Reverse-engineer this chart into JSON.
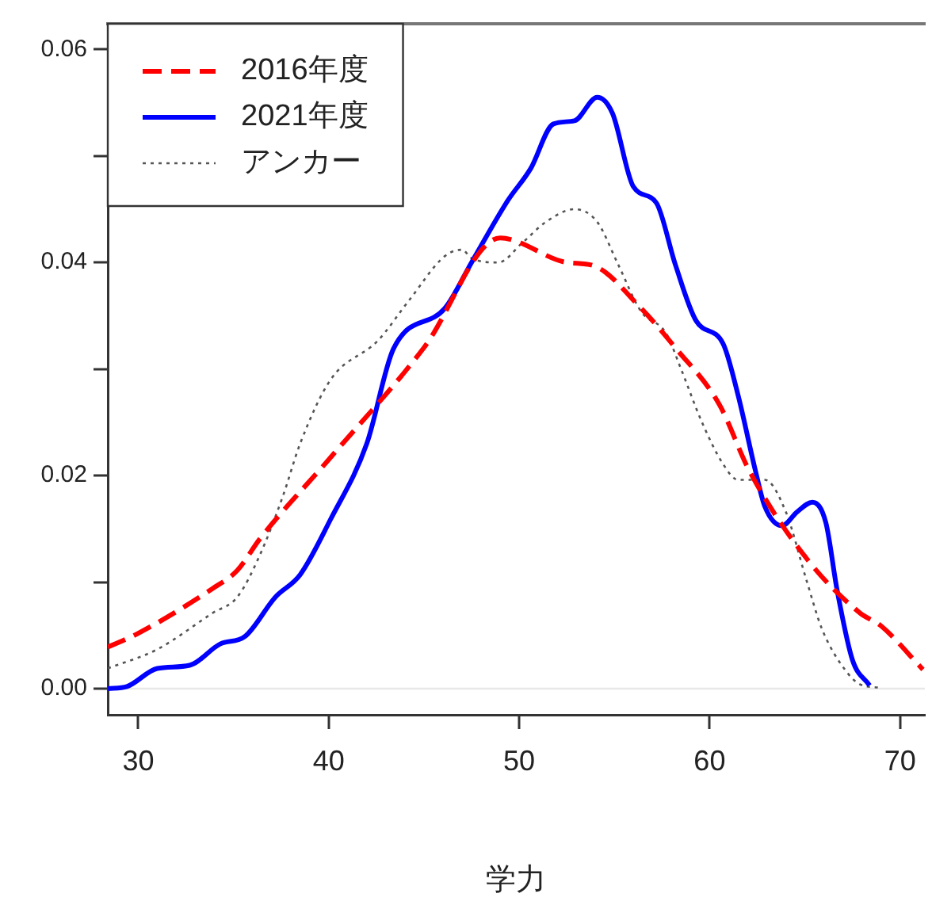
{
  "chart_data": {
    "type": "line",
    "xlabel": "学力",
    "xlim": [
      28.4,
      71.3
    ],
    "ylim": [
      -0.00245,
      0.0624
    ],
    "xticks": [
      30,
      40,
      50,
      60,
      70
    ],
    "yticks": [
      {
        "value": 0,
        "label": "0.00"
      },
      {
        "value": 0.01,
        "label": null
      },
      {
        "value": 0.02,
        "label": "0.02"
      },
      {
        "value": 0.03,
        "label": null
      },
      {
        "value": 0.04,
        "label": "0.04"
      },
      {
        "value": 0.05,
        "label": null
      },
      {
        "value": 0.06,
        "label": "0.06"
      }
    ],
    "grid": false,
    "legend": "top left",
    "marker": "none",
    "ref_lines": [
      {
        "axis": "y",
        "value": 0,
        "color": "#e8e8e8"
      }
    ],
    "series": [
      {
        "name": "2016年度",
        "color": "#ff0000",
        "line_style": "dashed",
        "x": [
          28.4,
          30,
          33.9,
          35.2,
          36.4,
          40,
          45,
          49,
          52.5,
          53.9,
          56.4,
          58.2,
          60.5,
          62.1,
          65.1,
          67.9,
          69,
          71.2
        ],
        "values": [
          0.0039,
          0.0052,
          0.0094,
          0.0111,
          0.0141,
          0.0215,
          0.032,
          0.0423,
          0.04,
          0.0397,
          0.0357,
          0.032,
          0.0267,
          0.0204,
          0.0122,
          0.0071,
          0.0059,
          0.0018
        ]
      },
      {
        "name": "2021年度",
        "color": "#0000ff",
        "line_style": "solid",
        "x": [
          28.4,
          29.4,
          31,
          32.7,
          34.3,
          35.6,
          37.2,
          38.5,
          40.1,
          42,
          43.4,
          46.1,
          47.5,
          49.4,
          50.6,
          51.8,
          52.9,
          54.1,
          54.9,
          56,
          57.2,
          58.2,
          59.3,
          60.7,
          61.5,
          62.4,
          62.9,
          63.8,
          64.6,
          65.4,
          66.1,
          66.7,
          67.5,
          68.4
        ],
        "values": [
          0,
          0.0002,
          0.0019,
          0.0022,
          0.0042,
          0.0049,
          0.0086,
          0.0107,
          0.0159,
          0.023,
          0.0319,
          0.0357,
          0.04,
          0.0458,
          0.0488,
          0.053,
          0.0533,
          0.0555,
          0.054,
          0.0471,
          0.0456,
          0.0398,
          0.0345,
          0.0324,
          0.0275,
          0.0205,
          0.0171,
          0.0153,
          0.0166,
          0.0175,
          0.0156,
          0.0092,
          0.0027,
          0.0003
        ]
      },
      {
        "name": "アンカー",
        "color": "#555555",
        "line_style": "dotted",
        "x": [
          28.4,
          31,
          33.9,
          35.2,
          36.4,
          37.6,
          38.5,
          40.1,
          42.6,
          44.2,
          46.1,
          47,
          47.5,
          48.9,
          50.2,
          51.4,
          52.9,
          54.1,
          55.2,
          56.4,
          57.7,
          58.5,
          59.6,
          60.7,
          61.5,
          62.9,
          64,
          65.1,
          65.9,
          67.1,
          67.9,
          68.9
        ],
        "values": [
          0.0019,
          0.0037,
          0.0071,
          0.0086,
          0.0126,
          0.0181,
          0.023,
          0.029,
          0.0327,
          0.0364,
          0.0406,
          0.0412,
          0.0404,
          0.04,
          0.0419,
          0.0438,
          0.045,
          0.0438,
          0.0398,
          0.0354,
          0.0334,
          0.03,
          0.025,
          0.0211,
          0.0196,
          0.0196,
          0.0166,
          0.0101,
          0.0056,
          0.0018,
          0.0004,
          0.0001
        ]
      }
    ]
  }
}
